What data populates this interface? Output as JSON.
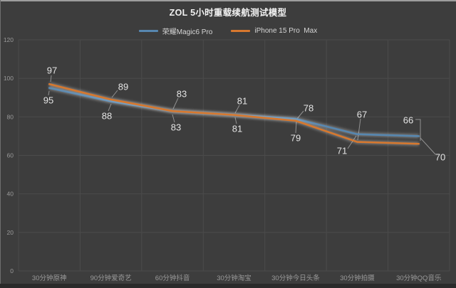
{
  "title": "ZOL 5小时重载续航测试模型",
  "legend": [
    {
      "label": "荣耀Magic6 Pro",
      "color": "#5787b0"
    },
    {
      "label": "iPhone 15 Pro  Max",
      "color": "#d7782e"
    }
  ],
  "chart_data": {
    "type": "line",
    "title": "ZOL 5小时重载续航测试模型",
    "categories": [
      "30分钟原神",
      "90分钟爱奇艺",
      "60分钟抖音",
      "30分钟淘宝",
      "30分钟今日头条",
      "30分钟拍摄",
      "30分钟QQ音乐"
    ],
    "series": [
      {
        "name": "荣耀Magic6 Pro",
        "color": "#5787b0",
        "values": [
          95,
          88,
          83,
          81,
          79,
          71,
          70
        ]
      },
      {
        "name": "iPhone 15 Pro  Max",
        "color": "#d7782e",
        "values": [
          97,
          89,
          83,
          81,
          78,
          67,
          66
        ]
      }
    ],
    "xlabel": "",
    "ylabel": "",
    "ylim": [
      0,
      120
    ],
    "yticks": [
      0,
      20,
      40,
      60,
      80,
      100,
      120
    ],
    "grid": true,
    "data_labels": true,
    "legend_position": "top"
  },
  "colors": {
    "background": "#3d3d3d",
    "gridline": "#4b4b4b",
    "tick_text": "#999999",
    "axis_label_text": "#9a9a9a",
    "data_label_text": "#e4e4e4",
    "title_text": "#f2f2f2",
    "legend_text": "#d6d6d6",
    "leader_line": "#919191"
  }
}
